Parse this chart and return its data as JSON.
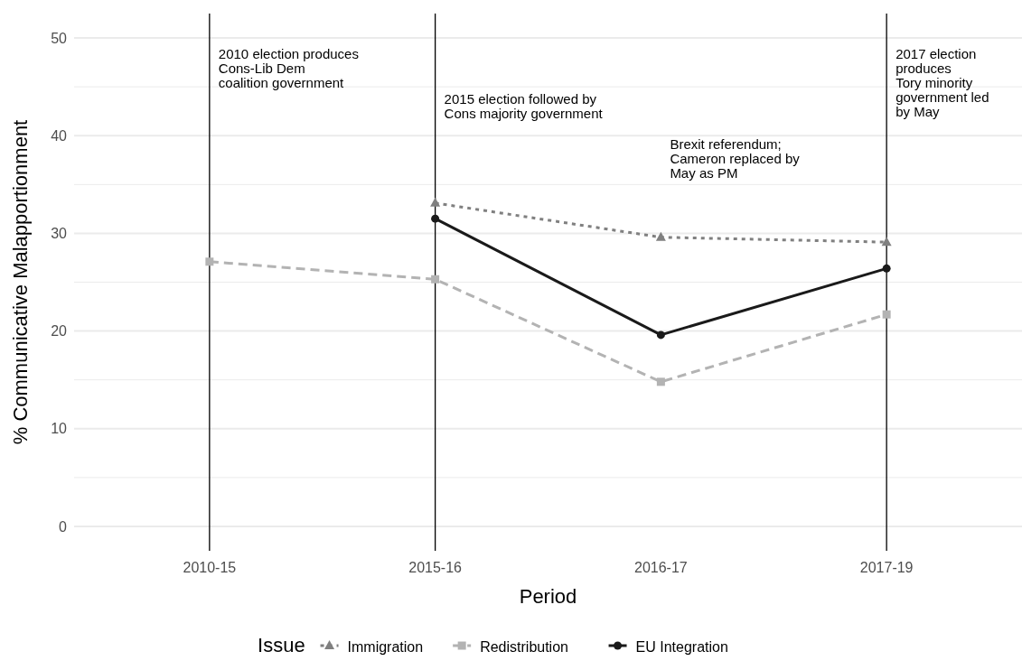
{
  "chart_data": {
    "type": "line",
    "xlabel": "Period",
    "ylabel": "% Communicative Malapportionment",
    "legend_title": "Issue",
    "categories": [
      "2010-15",
      "2015-16",
      "2016-17",
      "2017-19"
    ],
    "series": [
      {
        "name": "Immigration",
        "color": "#808080",
        "marker": "triangle",
        "line_style": "dotted",
        "values": [
          null,
          33.1,
          29.6,
          29.1
        ]
      },
      {
        "name": "Redistribution",
        "color": "#b3b3b3",
        "marker": "square",
        "line_style": "dashed",
        "values": [
          27.1,
          25.3,
          14.8,
          21.7
        ]
      },
      {
        "name": "EU Integration",
        "color": "#1a1a1a",
        "marker": "circle",
        "line_style": "solid",
        "values": [
          null,
          31.5,
          19.6,
          26.4
        ]
      }
    ],
    "ylim": [
      -2.5,
      52.5
    ],
    "yticks": [
      0,
      10,
      20,
      30,
      40,
      50
    ],
    "grid": "y",
    "legend": "bottom",
    "ref_lines": [
      {
        "axis": "x",
        "value": "2010-15",
        "color": "#000000",
        "label": "2010 election produces\nCons-Lib Dem\ncoalition government"
      },
      {
        "axis": "x",
        "value": "2015-16",
        "color": "#000000",
        "label": "2015 election followed by\nCons majority government"
      },
      {
        "axis": "x",
        "value": "2017-19",
        "color": "#000000",
        "label": "2017 election\nproduces\nTory minority\ngovernment led\nby May"
      }
    ],
    "annotations": [
      "Brexit referendum;\nCameron replaced by\nMay as PM"
    ]
  }
}
